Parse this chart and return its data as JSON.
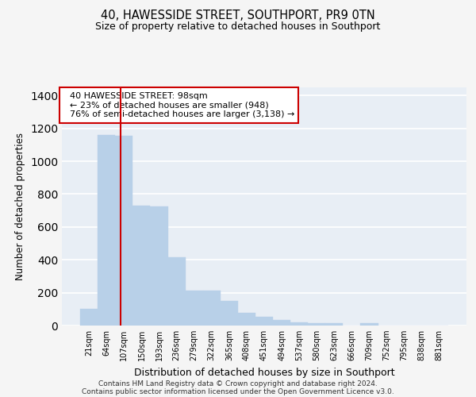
{
  "title1": "40, HAWESSIDE STREET, SOUTHPORT, PR9 0TN",
  "title2": "Size of property relative to detached houses in Southport",
  "xlabel": "Distribution of detached houses by size in Southport",
  "ylabel": "Number of detached properties",
  "categories": [
    "21sqm",
    "64sqm",
    "107sqm",
    "150sqm",
    "193sqm",
    "236sqm",
    "279sqm",
    "322sqm",
    "365sqm",
    "408sqm",
    "451sqm",
    "494sqm",
    "537sqm",
    "580sqm",
    "623sqm",
    "666sqm",
    "709sqm",
    "752sqm",
    "795sqm",
    "838sqm",
    "881sqm"
  ],
  "values": [
    100,
    1160,
    1155,
    730,
    725,
    415,
    215,
    215,
    150,
    78,
    55,
    33,
    20,
    15,
    14,
    0,
    13,
    0,
    0,
    0,
    0
  ],
  "bar_color": "#b8d0e8",
  "bar_edge_color": "#b8d0e8",
  "background_color": "#e8eef5",
  "fig_background": "#f5f5f5",
  "grid_color": "#ffffff",
  "vline_x": 1.82,
  "vline_color": "#cc0000",
  "annotation_text": "  40 HAWESSIDE STREET: 98sqm\n  ← 23% of detached houses are smaller (948)\n  76% of semi-detached houses are larger (3,138) →",
  "annotation_box_color": "#ffffff",
  "annotation_box_edge": "#cc0000",
  "footer1": "Contains HM Land Registry data © Crown copyright and database right 2024.",
  "footer2": "Contains public sector information licensed under the Open Government Licence v3.0.",
  "ylim": [
    0,
    1450
  ],
  "yticks": [
    0,
    200,
    400,
    600,
    800,
    1000,
    1200,
    1400
  ]
}
